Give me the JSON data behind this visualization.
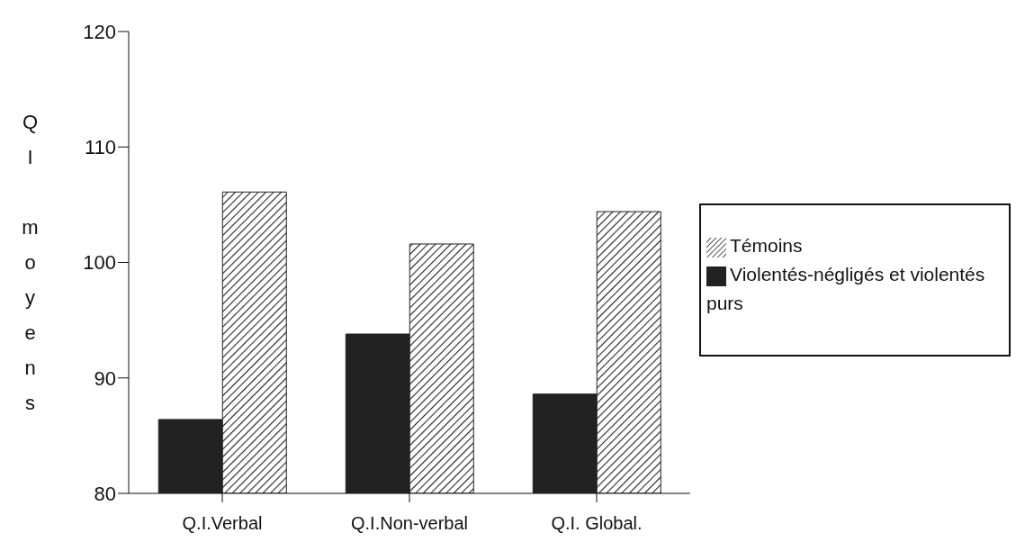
{
  "chart_data": {
    "type": "bar",
    "ylabel": "QI moyens",
    "categories": [
      "Q.I.Verbal",
      "Q.I.Non-verbal",
      "Q.I. Global."
    ],
    "series": [
      {
        "name": "Violentés-négligés et violentés purs",
        "color": "#222222",
        "values": [
          86.4,
          93.8,
          88.6
        ]
      },
      {
        "name": "Témoins",
        "color": "#222222",
        "values": [
          106.1,
          101.6,
          104.4
        ]
      }
    ],
    "ylim": [
      80,
      120
    ],
    "yticks": [
      80,
      90,
      100,
      110,
      120
    ],
    "grid": false,
    "legend": "right"
  }
}
